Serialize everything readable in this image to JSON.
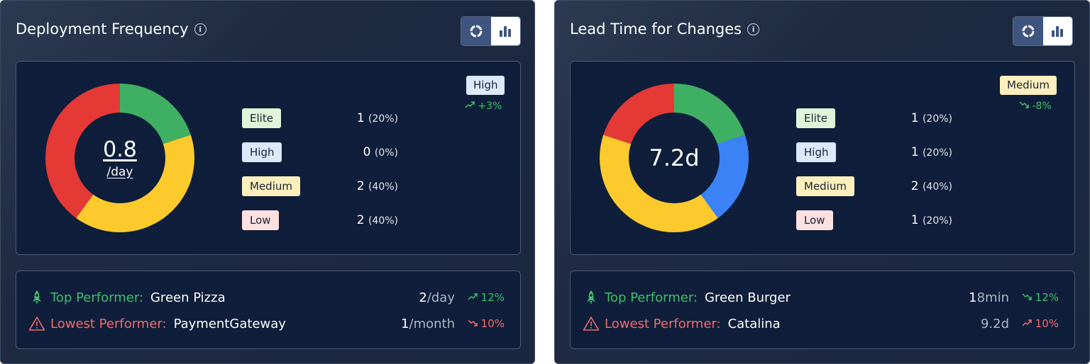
{
  "colors": {
    "elite": "#dff5d8",
    "high": "#dbe9fb",
    "medium": "#fdf0bd",
    "low": "#fde0e0",
    "green": "#3fb063",
    "red": "#e53935",
    "yellow": "#fdca2e",
    "blue": "#3b82f6"
  },
  "cards": [
    {
      "title": "Deployment Frequency",
      "center_value": "0.8",
      "center_unit": "/day",
      "rating": "High",
      "rating_trend": "+3%",
      "tiers": [
        {
          "label": "Elite",
          "count": "1",
          "pct": "(20%)"
        },
        {
          "label": "High",
          "count": "0",
          "pct": "(0%)"
        },
        {
          "label": "Medium",
          "count": "2",
          "pct": "(40%)"
        },
        {
          "label": "Low",
          "count": "2",
          "pct": "(40%)"
        }
      ],
      "donut": [
        {
          "tier": "Elite",
          "fraction": 0.2,
          "color": "#3fb063"
        },
        {
          "tier": "Medium",
          "fraction": 0.4,
          "color": "#fdca2e"
        },
        {
          "tier": "Low",
          "fraction": 0.4,
          "color": "#e53935"
        }
      ],
      "top_performer": {
        "label": "Top Performer:",
        "name": "Green Pizza",
        "value": "2",
        "unit": "/day",
        "trend": "12%"
      },
      "lowest_performer": {
        "label": "Lowest Performer:",
        "name": "PaymentGateway",
        "value": "1",
        "unit": "/month",
        "trend": "10%"
      }
    },
    {
      "title": "Lead Time for Changes",
      "center_value": "7.2d",
      "rating": "Medium",
      "rating_trend": "-8%",
      "tiers": [
        {
          "label": "Elite",
          "count": "1",
          "pct": "(20%)"
        },
        {
          "label": "High",
          "count": "1",
          "pct": "(20%)"
        },
        {
          "label": "Medium",
          "count": "2",
          "pct": "(40%)"
        },
        {
          "label": "Low",
          "count": "1",
          "pct": "(20%)"
        }
      ],
      "donut": [
        {
          "tier": "Elite",
          "fraction": 0.2,
          "color": "#3fb063"
        },
        {
          "tier": "High",
          "fraction": 0.2,
          "color": "#3b82f6"
        },
        {
          "tier": "Medium",
          "fraction": 0.4,
          "color": "#fdca2e"
        },
        {
          "tier": "Low",
          "fraction": 0.2,
          "color": "#e53935"
        }
      ],
      "top_performer": {
        "label": "Top Performer:",
        "name": "Green Burger",
        "value": "1",
        "unit": "8min",
        "trend": "12%"
      },
      "lowest_performer": {
        "label": "Lowest Performer:",
        "name": "Catalina",
        "value": "9.2d",
        "unit": "",
        "trend": "10%"
      }
    }
  ],
  "icons": {
    "info": "info-icon",
    "donut_view": "donut-chart-icon",
    "bar_view": "bar-chart-icon",
    "trend_up": "trend-up-icon",
    "trend_down": "trend-down-icon",
    "top": "rocket-icon",
    "lowest": "warning-icon"
  }
}
